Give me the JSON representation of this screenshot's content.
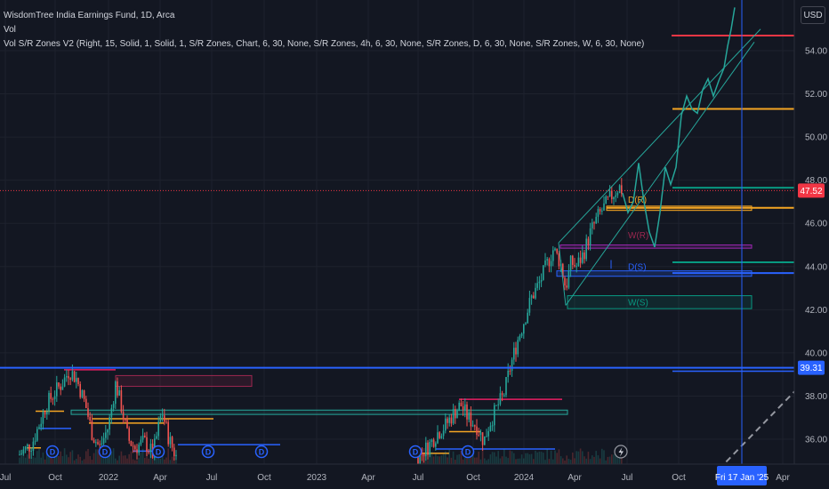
{
  "legend": {
    "title": "WisdomTree India Earnings Fund, 1D, Arca",
    "vol": "Vol",
    "indicator": "Vol S/R Zones V2 (Right, 15, Solid, 1, Solid, 1, S/R Zones, Chart, 6, 30, None, S/R Zones, 4h, 6, 30, None, S/R Zones, D, 6, 30, None, S/R Zones, W, 6, 30, None)"
  },
  "currency": "USD",
  "colors": {
    "background": "#131722",
    "grid": "#1e222d",
    "up": "#26a69a",
    "down": "#ef5350",
    "blue": "#2962ff",
    "orange": "#f5a623",
    "red": "#f23645",
    "green": "#089981",
    "purple": "#9c27b0"
  },
  "price_axis": {
    "ticks": [
      "54.00",
      "52.00",
      "50.00",
      "48.00",
      "46.00",
      "44.00",
      "42.00",
      "40.00",
      "38.00",
      "36.00"
    ],
    "last_price": "47.52",
    "crosshair_price": "39.31"
  },
  "time_axis": {
    "ticks": [
      "Jul",
      "Oct",
      "2022",
      "Apr",
      "Jul",
      "Oct",
      "2023",
      "Apr",
      "Jul",
      "Oct",
      "2024",
      "Apr",
      "Jul",
      "Oct",
      "Apr"
    ],
    "crosshair_date": "Fri 17 Jan '25"
  },
  "zone_labels": {
    "d_resistance": "D(R)",
    "w_resistance": "W(R)",
    "d_support": "D(S)",
    "w_support": "W(S)"
  },
  "event_markers": [
    "D",
    "D",
    "D",
    "D",
    "D",
    "D",
    "D"
  ]
}
